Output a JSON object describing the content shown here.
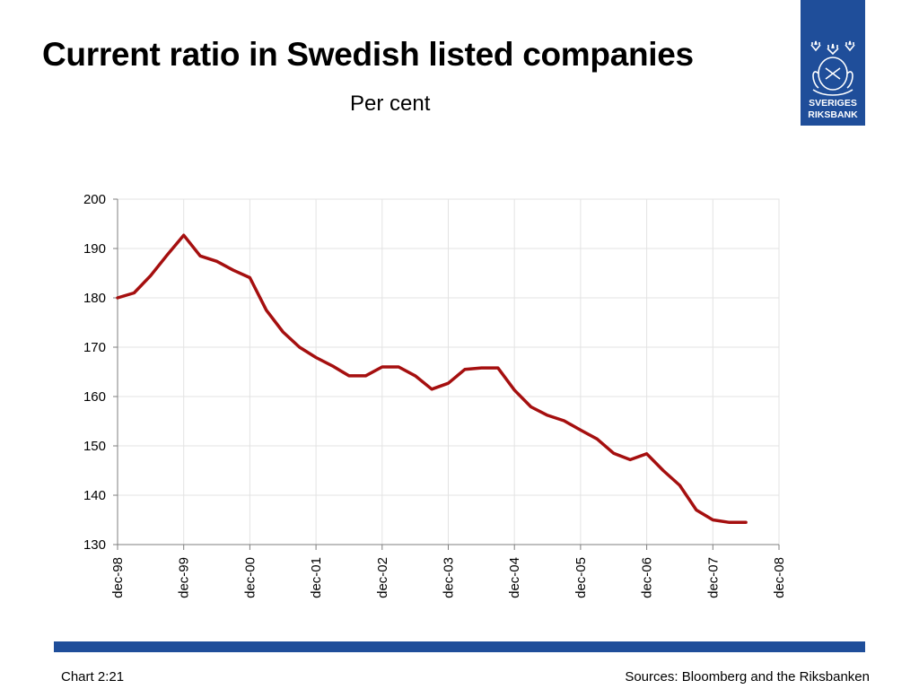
{
  "header": {
    "title": "Current ratio in Swedish listed companies",
    "subtitle": "Per cent"
  },
  "logo": {
    "line1": "SVERIGES",
    "line2": "RIKSBANK",
    "color": "#1f4e9a"
  },
  "footer": {
    "chart_number": "Chart 2:21",
    "sources": "Sources: Bloomberg and the Riksbanken",
    "bar_color": "#1f4e9a"
  },
  "chart_data": {
    "type": "line",
    "title": "Current ratio in Swedish listed companies",
    "subtitle": "Per cent",
    "x_tick_labels": [
      "dec-98",
      "dec-99",
      "dec-00",
      "dec-01",
      "dec-02",
      "dec-03",
      "dec-04",
      "dec-05",
      "dec-06",
      "dec-07",
      "dec-08"
    ],
    "y_ticks": [
      130,
      140,
      150,
      160,
      170,
      180,
      190,
      200
    ],
    "ylim": [
      130,
      200
    ],
    "xlim": [
      "1998-12",
      "2008-12"
    ],
    "grid": true,
    "legend": "none",
    "series": [
      {
        "color": "#a50f0f",
        "x": [
          "1998-12",
          "1999-03",
          "1999-06",
          "1999-09",
          "1999-12",
          "2000-03",
          "2000-06",
          "2000-09",
          "2000-12",
          "2001-03",
          "2001-06",
          "2001-09",
          "2001-12",
          "2002-03",
          "2002-06",
          "2002-09",
          "2002-12",
          "2003-03",
          "2003-06",
          "2003-09",
          "2003-12",
          "2004-03",
          "2004-06",
          "2004-09",
          "2004-12",
          "2005-03",
          "2005-06",
          "2005-09",
          "2005-12",
          "2006-03",
          "2006-06",
          "2006-09",
          "2006-12",
          "2007-03",
          "2007-06",
          "2007-09",
          "2007-12",
          "2008-03",
          "2008-06"
        ],
        "values": [
          180.0,
          181.0,
          184.5,
          188.7,
          192.7,
          188.5,
          187.4,
          185.6,
          184.1,
          177.5,
          173.1,
          170.0,
          167.9,
          166.2,
          164.2,
          164.2,
          166.0,
          166.0,
          164.2,
          161.5,
          162.7,
          165.5,
          165.8,
          165.8,
          161.3,
          157.9,
          156.2,
          155.1,
          153.2,
          151.4,
          148.5,
          147.2,
          148.4,
          145.0,
          142.0,
          137.0,
          135.0,
          134.5,
          134.5
        ]
      }
    ]
  }
}
